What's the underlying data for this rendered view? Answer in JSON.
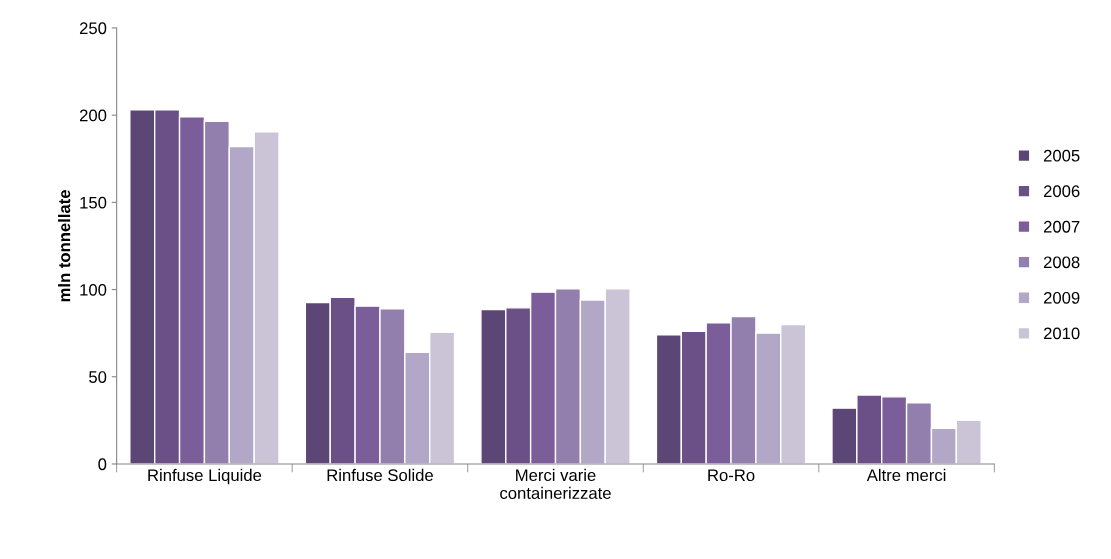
{
  "chart_data": {
    "type": "bar",
    "ylabel": "mln tonnellate",
    "categories": [
      "Rinfuse Liquide",
      "Rinfuse Solide",
      "Merci varie\ncontainerizzate",
      "Ro-Ro",
      "Altre merci"
    ],
    "series": [
      {
        "name": "2005",
        "color": "#5c4675",
        "values": [
          203,
          92.5,
          88.5,
          74,
          32
        ]
      },
      {
        "name": "2006",
        "color": "#6b5088",
        "values": [
          203,
          95.5,
          89.5,
          76,
          39.5
        ]
      },
      {
        "name": "2007",
        "color": "#7a5d99",
        "values": [
          199,
          90.5,
          98.5,
          81,
          38.5
        ]
      },
      {
        "name": "2008",
        "color": "#937fae",
        "values": [
          196.5,
          89,
          100.5,
          84.5,
          35
        ]
      },
      {
        "name": "2009",
        "color": "#b2a7c6",
        "values": [
          182,
          64,
          94,
          75,
          20.5
        ]
      },
      {
        "name": "2010",
        "color": "#cbc4d7",
        "values": [
          190.5,
          75.5,
          100.5,
          80,
          25
        ]
      }
    ],
    "ylim": [
      0,
      250
    ],
    "yticks": [
      0,
      50,
      100,
      150,
      200,
      250
    ],
    "grid": false,
    "legend": "right"
  }
}
